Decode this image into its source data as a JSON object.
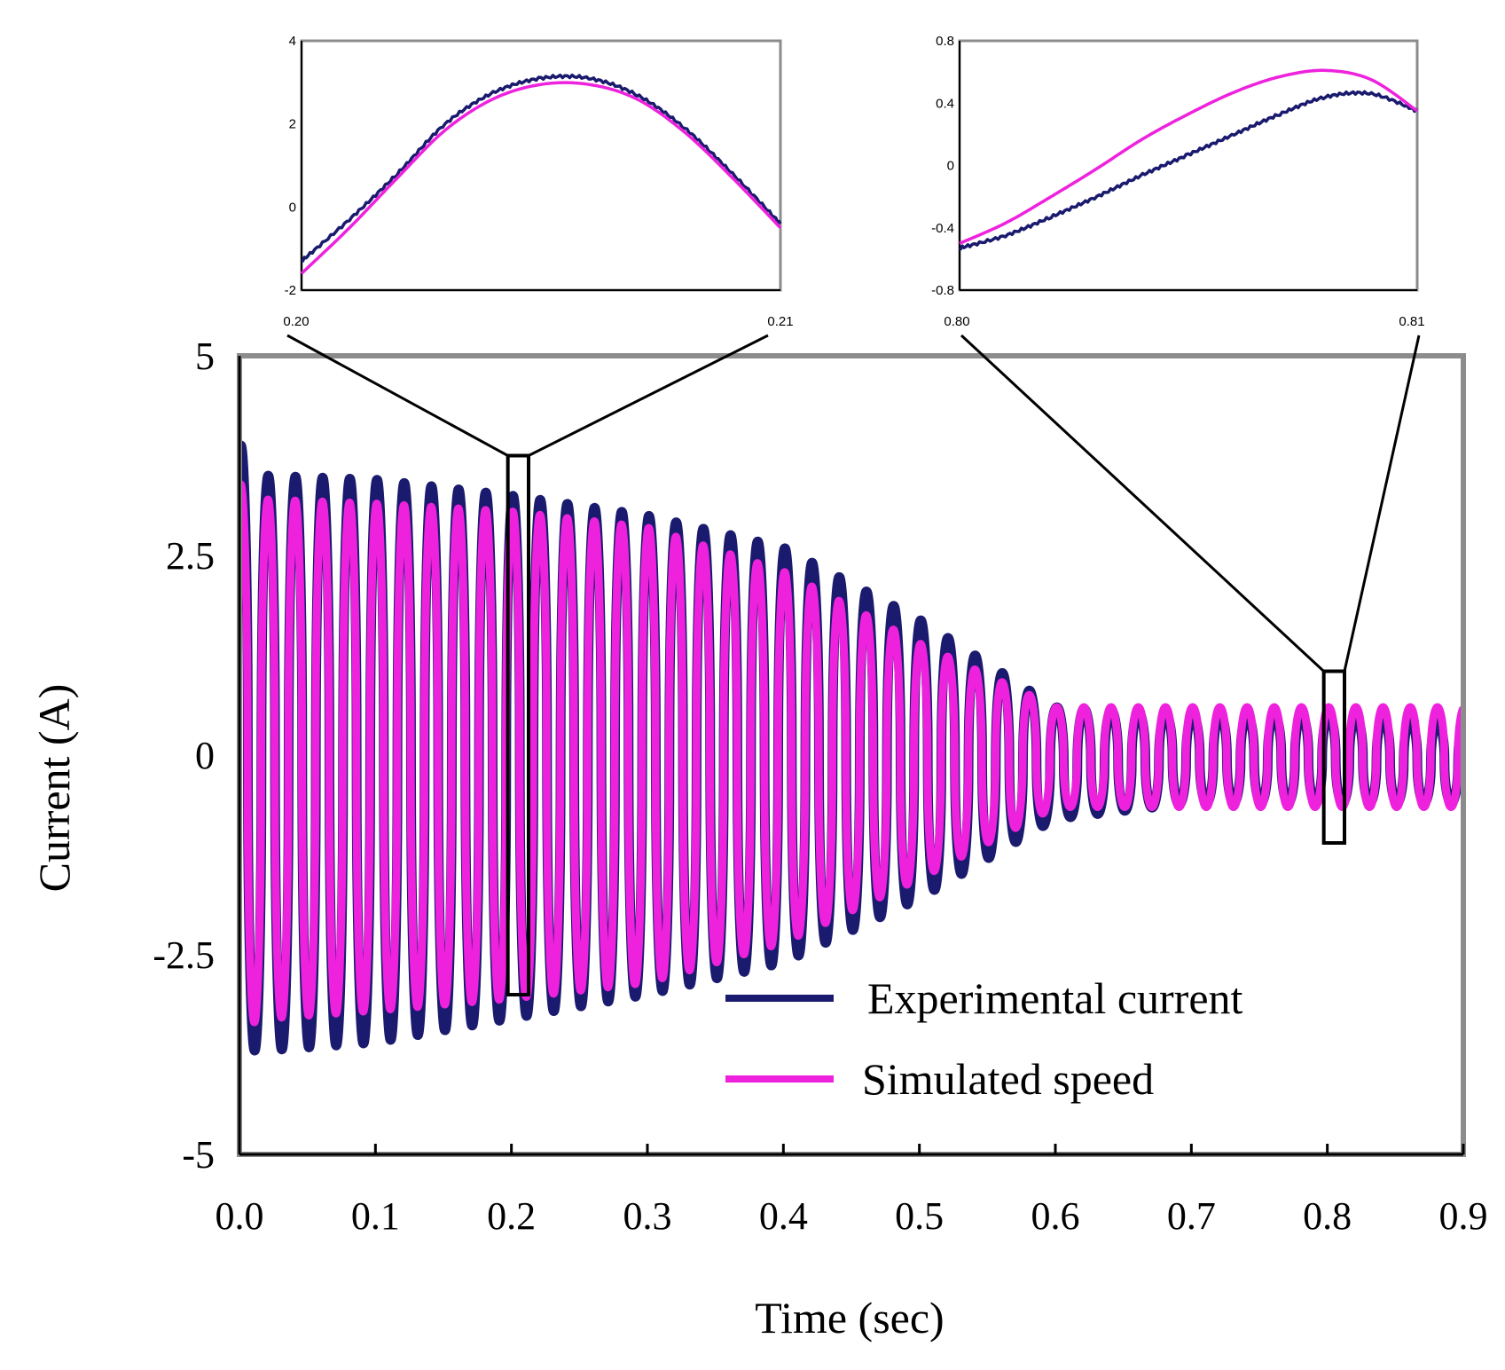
{
  "chart_data": [
    {
      "id": "main",
      "type": "line",
      "xlabel": "Time (sec)",
      "ylabel": "Current (A)",
      "xlim": [
        0,
        0.9
      ],
      "ylim": [
        -5,
        5
      ],
      "x_ticks": [
        "0.0",
        "0.1",
        "0.2",
        "0.3",
        "0.4",
        "0.5",
        "0.6",
        "0.7",
        "0.8",
        "0.9"
      ],
      "y_ticks": [
        "5",
        "2.5",
        "0",
        "-2.5",
        "-5"
      ],
      "grid": false,
      "legend_position": "bottom-right",
      "signal_frequency_hz": 50,
      "series": [
        {
          "name": "Experimental current",
          "color": "#1a1a6e",
          "envelope": {
            "t": [
              0.0,
              0.02,
              0.1,
              0.2,
              0.3,
              0.4,
              0.5,
              0.6,
              0.7,
              0.8,
              0.9
            ],
            "max": [
              3.9,
              3.5,
              3.45,
              3.25,
              3.0,
              2.6,
              1.7,
              0.6,
              0.5,
              0.5,
              0.4
            ],
            "min": [
              -3.7,
              -3.7,
              -3.6,
              -3.3,
              -3.0,
              -2.6,
              -1.8,
              -0.8,
              -0.6,
              -0.6,
              -0.6
            ]
          }
        },
        {
          "name": "Simulated speed",
          "color": "#ee22dd",
          "envelope": {
            "t": [
              0.0,
              0.02,
              0.1,
              0.2,
              0.3,
              0.4,
              0.5,
              0.6,
              0.7,
              0.8,
              0.9
            ],
            "max": [
              3.4,
              3.2,
              3.15,
              3.05,
              2.85,
              2.3,
              1.4,
              0.6,
              0.6,
              0.6,
              0.6
            ],
            "min": [
              -3.4,
              -3.3,
              -3.2,
              -3.05,
              -2.85,
              -2.35,
              -1.55,
              -0.65,
              -0.65,
              -0.65,
              -0.65
            ]
          }
        }
      ],
      "zoom_boxes": [
        {
          "x": [
            0.2,
            0.21
          ],
          "y": [
            -3.0,
            3.75
          ]
        },
        {
          "x": [
            0.8,
            0.81
          ],
          "y": [
            -1.1,
            1.05
          ]
        }
      ]
    },
    {
      "id": "inset-1",
      "type": "line",
      "xlim": [
        0.2,
        0.21
      ],
      "ylim": [
        -2,
        4
      ],
      "x_ticks": [
        "0.20",
        "0.21"
      ],
      "y_ticks": [
        "4",
        "2",
        "0",
        "-2"
      ],
      "series": [
        {
          "name": "Experimental current",
          "color": "#1a1a6e",
          "x": [
            0.2,
            0.201,
            0.202,
            0.203,
            0.204,
            0.205,
            0.206,
            0.207,
            0.208,
            0.209,
            0.21
          ],
          "y": [
            -1.3,
            -0.3,
            0.8,
            2.0,
            2.75,
            3.1,
            3.1,
            2.7,
            1.9,
            0.8,
            -0.4
          ]
        },
        {
          "name": "Simulated speed",
          "color": "#ee22dd",
          "x": [
            0.2,
            0.201,
            0.202,
            0.203,
            0.204,
            0.205,
            0.206,
            0.207,
            0.208,
            0.209,
            0.21
          ],
          "y": [
            -1.6,
            -0.5,
            0.7,
            1.85,
            2.6,
            2.95,
            2.95,
            2.6,
            1.8,
            0.7,
            -0.5
          ]
        }
      ]
    },
    {
      "id": "inset-2",
      "type": "line",
      "xlim": [
        0.8,
        0.81
      ],
      "ylim": [
        -0.8,
        0.8
      ],
      "x_ticks": [
        "0.80",
        "0.81"
      ],
      "y_ticks": [
        "0.8",
        "0.4",
        "0",
        "-0.4",
        "-0.8"
      ],
      "series": [
        {
          "name": "Experimental current",
          "color": "#1a1a6e",
          "x": [
            0.8,
            0.801,
            0.802,
            0.803,
            0.804,
            0.805,
            0.806,
            0.807,
            0.808,
            0.809,
            0.81
          ],
          "y": [
            -0.53,
            -0.45,
            -0.33,
            -0.2,
            -0.06,
            0.07,
            0.2,
            0.33,
            0.44,
            0.46,
            0.35
          ]
        },
        {
          "name": "Simulated speed",
          "color": "#ee22dd",
          "x": [
            0.8,
            0.801,
            0.802,
            0.803,
            0.804,
            0.805,
            0.806,
            0.807,
            0.808,
            0.809,
            0.81
          ],
          "y": [
            -0.5,
            -0.37,
            -0.2,
            -0.02,
            0.17,
            0.33,
            0.47,
            0.57,
            0.61,
            0.55,
            0.35
          ]
        }
      ]
    }
  ]
}
